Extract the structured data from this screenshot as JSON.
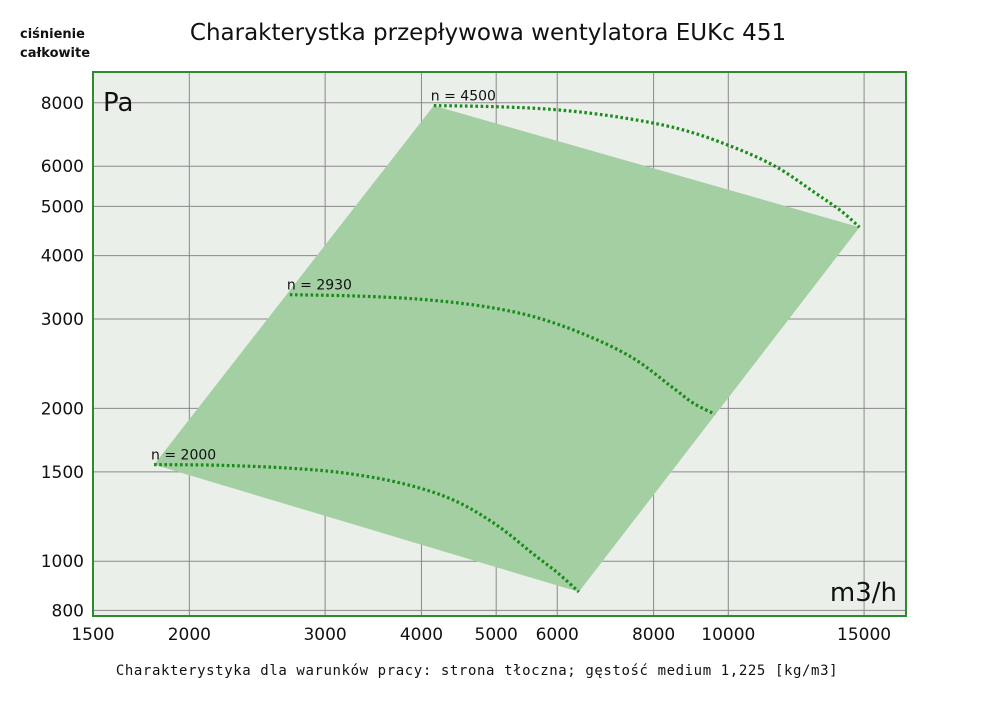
{
  "chart_data": {
    "type": "line",
    "title": "Charakterystka przepływowa wentylatora EUKc 451",
    "ylabel": "ciśnienie całkowite",
    "y_unit": "Pa",
    "x_unit": "m3/h",
    "xscale": "log",
    "yscale": "log",
    "xlim": [
      1500,
      17000
    ],
    "ylim": [
      780,
      9200
    ],
    "x_ticks": [
      1500,
      2000,
      3000,
      4000,
      5000,
      6000,
      8000,
      10000,
      15000
    ],
    "y_ticks": [
      800,
      1000,
      1500,
      2000,
      3000,
      4000,
      5000,
      6000,
      8000
    ],
    "grid": true,
    "footnote": "Charakterystyka dla warunków pracy: strona tłoczna; gęstość medium 1,225 [kg/m3]",
    "area_polygon": [
      [
        1800,
        1550
      ],
      [
        4150,
        7900
      ],
      [
        14800,
        4550
      ],
      [
        6400,
        870
      ]
    ],
    "series": [
      {
        "name": "n = 2000",
        "x": [
          1800,
          2200,
          2700,
          3200,
          3800,
          4400,
          5000,
          5600,
          6000,
          6400
        ],
        "y": [
          1550,
          1545,
          1525,
          1490,
          1420,
          1320,
          1180,
          1030,
          950,
          870
        ]
      },
      {
        "name": "n = 2930",
        "x": [
          2700,
          3300,
          4000,
          4800,
          5600,
          6500,
          7500,
          8400,
          9000,
          9600
        ],
        "y": [
          3350,
          3330,
          3280,
          3180,
          3030,
          2800,
          2520,
          2220,
          2050,
          1950
        ]
      },
      {
        "name": "n = 4500",
        "x": [
          4150,
          5000,
          6000,
          7200,
          8600,
          10000,
          11500,
          13000,
          14000,
          14800
        ],
        "y": [
          7900,
          7860,
          7750,
          7500,
          7120,
          6600,
          6000,
          5300,
          4900,
          4550
        ]
      }
    ]
  },
  "colors": {
    "frame": "#2f8a2f",
    "plot_bg": "#eaefea",
    "grid": "#8a8a8a",
    "area_fill": "#a3cfa3",
    "curve": "#1a8c1a"
  }
}
